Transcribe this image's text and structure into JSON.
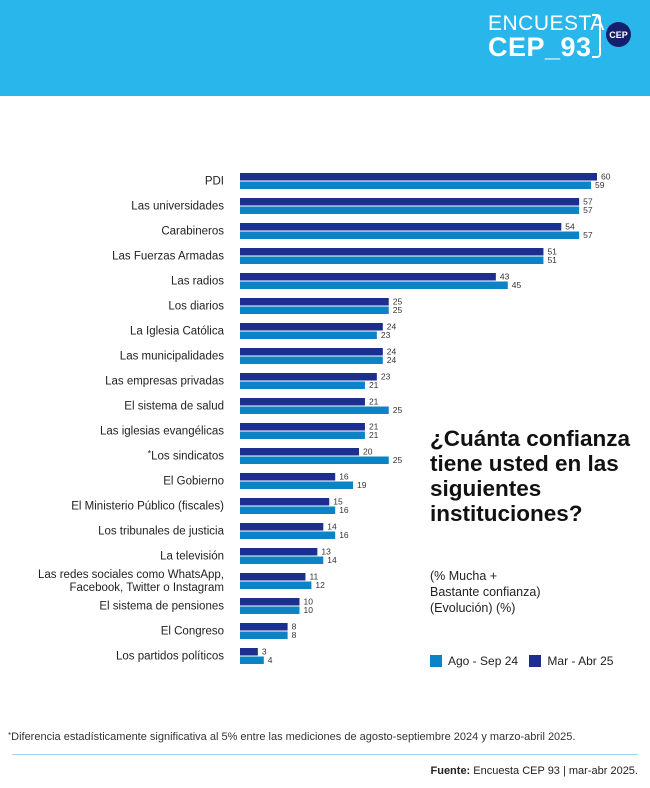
{
  "header": {
    "logo_line1": "ENCUESTA",
    "logo_line2": "CEP_93",
    "logo_badge": "CEP"
  },
  "side_panel": {
    "title": "¿Cuánta confianza tiene usted en las siguientes instituciones?",
    "subtitle_line1": "(% Mucha +",
    "subtitle_line2": "Bastante confianza)",
    "subtitle_line3": "(Evolución) (%)"
  },
  "legend": {
    "items": [
      {
        "label": "Ago - Sep 24",
        "color": "#0a84c6"
      },
      {
        "label": "Mar - Abr 25",
        "color": "#1c2f8f"
      }
    ]
  },
  "footnote": "Diferencia estadísticamente significativa al 5% entre las mediciones de agosto-septiembre 2024 y marzo-abril 2025.",
  "footnote_marker": "*",
  "source": {
    "label": "Fuente:",
    "text": "Encuesta CEP 93 | mar-abr 2025."
  },
  "colors": {
    "header_bg": "#29b6ea",
    "dark_bar": "#1c2f8f",
    "light_bar": "#0a84c6"
  },
  "chart_data": {
    "type": "bar",
    "orientation": "horizontal",
    "title": "¿Cuánta confianza tiene usted en las siguientes instituciones?",
    "xlim": [
      0,
      60
    ],
    "categories": [
      [
        "PDI"
      ],
      [
        "Las universidades"
      ],
      [
        "Carabineros"
      ],
      [
        "Las Fuerzas Armadas"
      ],
      [
        "Las radios"
      ],
      [
        "Los diarios"
      ],
      [
        "La Iglesia Católica"
      ],
      [
        "Las municipalidades"
      ],
      [
        "Las empresas privadas"
      ],
      [
        "El sistema de salud"
      ],
      [
        "Las iglesias evangélicas"
      ],
      [
        "Los sindicatos"
      ],
      [
        "El Gobierno"
      ],
      [
        "El Ministerio Público (fiscales)"
      ],
      [
        "Los tribunales de justicia"
      ],
      [
        "La televisión"
      ],
      [
        "Las redes sociales como WhatsApp,",
        "Facebook, Twitter o Instagram"
      ],
      [
        "El sistema de pensiones"
      ],
      [
        "El Congreso"
      ],
      [
        "Los partidos políticos"
      ]
    ],
    "significant_marker": [
      "",
      "",
      "",
      "",
      "",
      "",
      "",
      "",
      "",
      "",
      "",
      "*",
      "",
      "",
      "",
      "",
      "",
      "",
      "",
      ""
    ],
    "series": [
      {
        "name": "Mar - Abr 25",
        "color": "#1c2f8f",
        "values": [
          60,
          57,
          54,
          51,
          43,
          25,
          24,
          24,
          23,
          21,
          21,
          20,
          16,
          15,
          14,
          13,
          11,
          10,
          8,
          3
        ]
      },
      {
        "name": "Ago - Sep 24",
        "color": "#0a84c6",
        "values": [
          59,
          57,
          57,
          51,
          45,
          25,
          23,
          24,
          21,
          25,
          21,
          25,
          19,
          16,
          16,
          14,
          12,
          10,
          8,
          4
        ]
      }
    ]
  }
}
